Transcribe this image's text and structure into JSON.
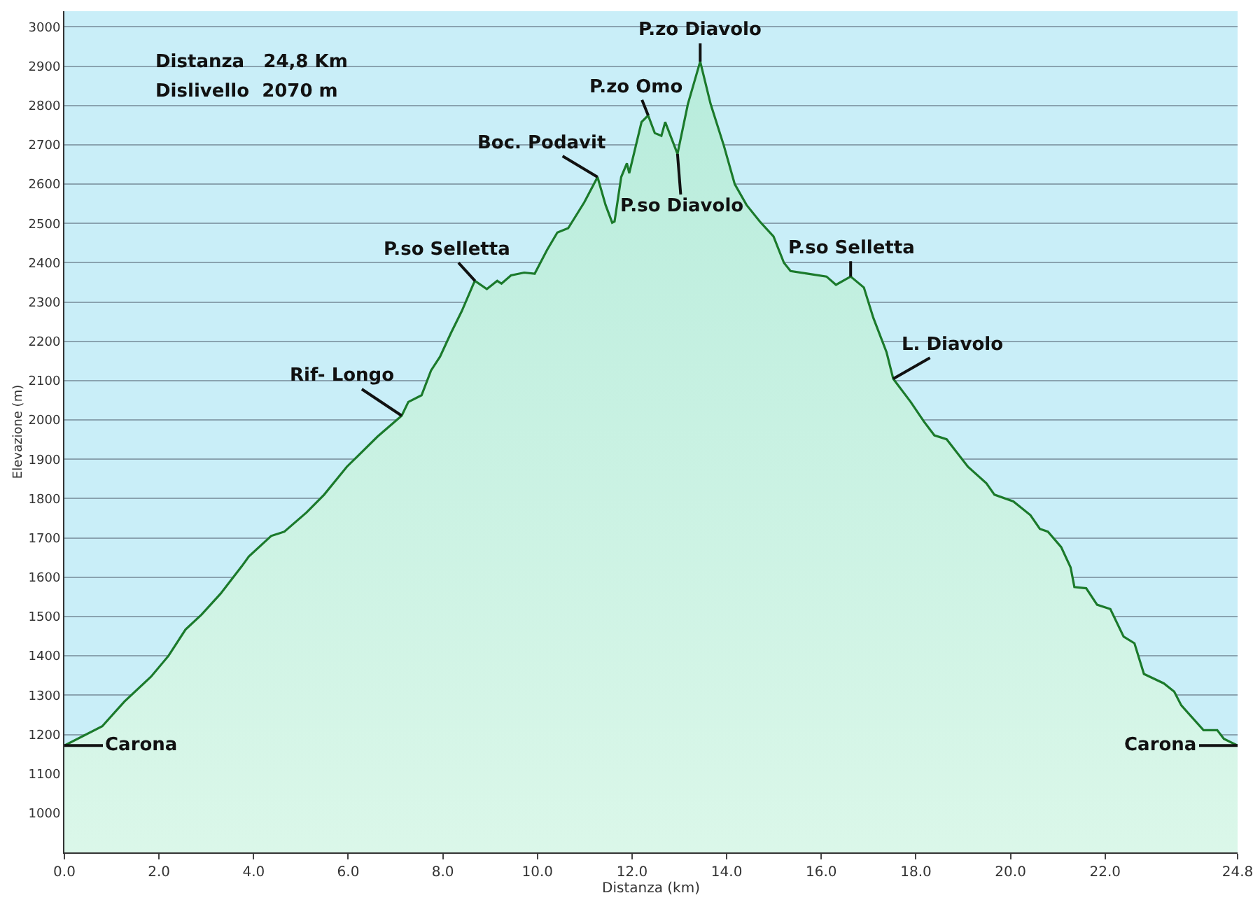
{
  "chart_data": {
    "type": "area",
    "xlabel": "Distanza (km)",
    "ylabel": "Elevazione (m)",
    "x": [
      0,
      0.8,
      1.27,
      1.83,
      2.2,
      2.56,
      2.9,
      3.3,
      3.75,
      3.9,
      4.37,
      4.65,
      5.12,
      5.49,
      5.97,
      6.62,
      7.13,
      7.27,
      7.55,
      7.75,
      7.94,
      8.17,
      8.4,
      8.65,
      8.68,
      8.93,
      9.15,
      9.24,
      9.44,
      9.72,
      9.94,
      10.2,
      10.42,
      10.65,
      10.99,
      11.27,
      11.44,
      11.58,
      11.63,
      11.77,
      11.89,
      11.94,
      12.2,
      12.34,
      12.48,
      12.62,
      12.7,
      12.96,
      13.18,
      13.44,
      13.66,
      13.94,
      14.17,
      14.42,
      14.7,
      14.99,
      15.21,
      15.35,
      15.72,
      16.11,
      16.31,
      16.62,
      16.9,
      17.1,
      17.38,
      17.52,
      17.89,
      18.17,
      18.39,
      18.65,
      19.1,
      19.49,
      19.66,
      20.06,
      20.42,
      20.62,
      20.79,
      21.07,
      21.27,
      21.35,
      21.6,
      21.83,
      22.11,
      22.39,
      22.62,
      22.82,
      23.24,
      23.46,
      23.61,
      24.08,
      24.37,
      24.51,
      24.8
    ],
    "series": [
      {
        "color": "#1b7a2b",
        "values": [
          1172,
          1221,
          1284,
          1347,
          1400,
          1467,
          1505,
          1558,
          1628,
          1653,
          1705,
          1716,
          1765,
          1810,
          1881,
          1958,
          2011,
          2046,
          2063,
          2126,
          2161,
          2221,
          2277,
          2347,
          2354,
          2333,
          2354,
          2347,
          2368,
          2375,
          2372,
          2432,
          2477,
          2488,
          2554,
          2618,
          2547,
          2502,
          2505,
          2618,
          2653,
          2628,
          2758,
          2775,
          2730,
          2723,
          2758,
          2677,
          2804,
          2912,
          2804,
          2698,
          2600,
          2547,
          2505,
          2467,
          2400,
          2379,
          2372,
          2365,
          2344,
          2365,
          2337,
          2260,
          2172,
          2105,
          2046,
          1996,
          1961,
          1951,
          1881,
          1839,
          1810,
          1793,
          1758,
          1723,
          1716,
          1677,
          1625,
          1575,
          1572,
          1530,
          1519,
          1449,
          1432,
          1354,
          1330,
          1309,
          1274,
          1211,
          1211,
          1189,
          1172
        ]
      }
    ],
    "xlim": [
      0,
      24.8
    ],
    "xticks": [
      {
        "value": 0,
        "label": "0.0"
      },
      {
        "value": 2,
        "label": "2.0"
      },
      {
        "value": 4,
        "label": "4.0"
      },
      {
        "value": 6,
        "label": "6.0"
      },
      {
        "value": 8,
        "label": "8.0"
      },
      {
        "value": 10,
        "label": "10.0"
      },
      {
        "value": 12,
        "label": "12.0"
      },
      {
        "value": 14,
        "label": "14.0"
      },
      {
        "value": 16,
        "label": "16.0"
      },
      {
        "value": 18,
        "label": "18.0"
      },
      {
        "value": 20,
        "label": "20.0"
      },
      {
        "value": 22,
        "label": "22.0"
      },
      {
        "value": 24.8,
        "label": "24.8"
      }
    ],
    "ylim": [
      900,
      3040
    ],
    "yticks": [
      1000,
      1100,
      1200,
      1300,
      1400,
      1500,
      1600,
      1700,
      1800,
      1900,
      2000,
      2100,
      2200,
      2300,
      2400,
      2500,
      2600,
      2700,
      2800,
      2900,
      3000
    ],
    "grid": "y",
    "legend": false,
    "annotations": [
      {
        "text": "Carona",
        "x": 0,
        "y": 1172
      },
      {
        "text": "Rif- Longo",
        "x": 7.13,
        "y": 2011
      },
      {
        "text": "P.so Selletta",
        "x": 8.68,
        "y": 2354
      },
      {
        "text": "Boc. Podavit",
        "x": 11.27,
        "y": 2618
      },
      {
        "text": "P.zo Omo",
        "x": 12.34,
        "y": 2775
      },
      {
        "text": "P.so Diavolo",
        "x": 12.96,
        "y": 2677
      },
      {
        "text": "P.zo Diavolo",
        "x": 13.44,
        "y": 2912
      },
      {
        "text": "P.so Selletta",
        "x": 16.62,
        "y": 2365
      },
      {
        "text": "L. Diavolo",
        "x": 17.52,
        "y": 2105
      },
      {
        "text": "Carona",
        "x": 24.8,
        "y": 1172
      },
      "Distanza   24,8 Km",
      "Dislivello  2070 m"
    ]
  }
}
